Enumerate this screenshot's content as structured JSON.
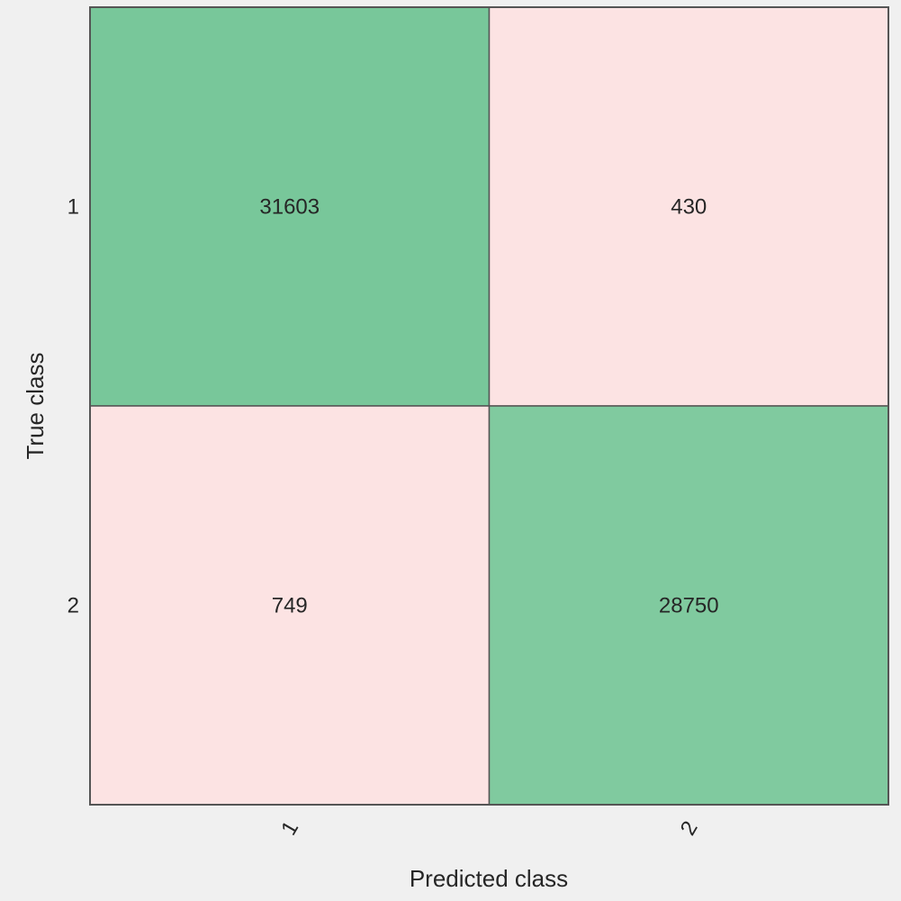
{
  "chart_data": {
    "type": "heatmap",
    "title": "",
    "xlabel": "Predicted class",
    "ylabel": "True class",
    "x_categories": [
      "1",
      "2"
    ],
    "y_categories": [
      "1",
      "2"
    ],
    "values": [
      [
        31603,
        430
      ],
      [
        749,
        28750
      ]
    ],
    "colors": {
      "correct": "#78c79a",
      "correct_alt": "#80ca9f",
      "incorrect": "#fce3e3",
      "background": "#f0f0f0",
      "border": "#555555"
    }
  }
}
